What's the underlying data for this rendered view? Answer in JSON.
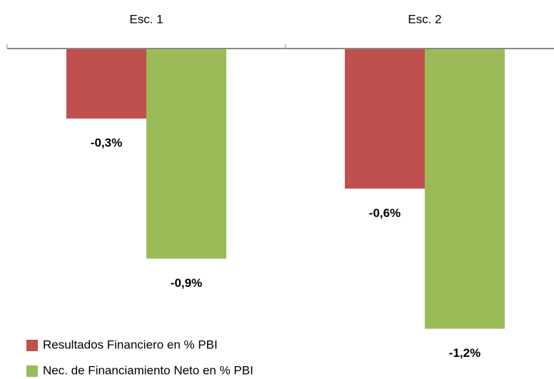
{
  "chart_data": {
    "type": "bar",
    "categories": [
      "Esc. 1",
      "Esc. 2"
    ],
    "series": [
      {
        "name": "Resultados Financiero en % PBI",
        "color": "#c0504d",
        "values": [
          -0.3,
          -0.6
        ],
        "value_labels": [
          "-0,3%",
          "-0,6%"
        ]
      },
      {
        "name": "Nec. de Financiamiento Neto en % PBI",
        "color": "#9bbb59",
        "values": [
          -0.9,
          -1.2
        ],
        "value_labels": [
          "-0,9%",
          "-1,2%"
        ]
      }
    ],
    "ylim": [
      -1.4,
      0
    ],
    "legend": "bottom-left"
  }
}
